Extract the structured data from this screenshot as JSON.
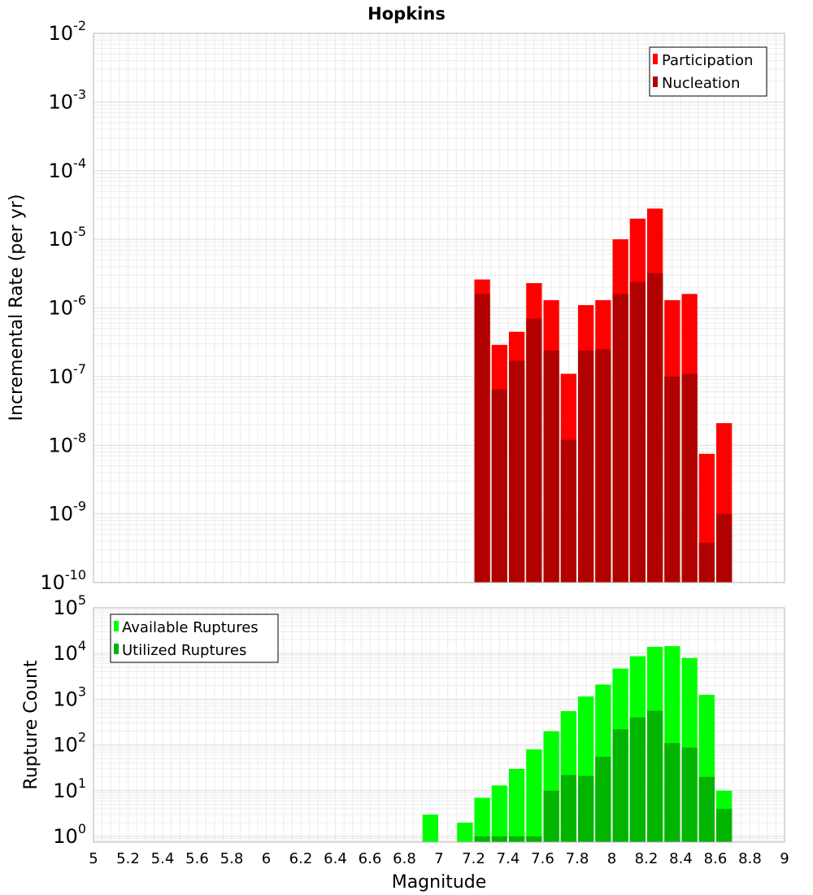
{
  "chart_data": [
    {
      "type": "bar",
      "title": "Hopkins",
      "xlabel": "",
      "ylabel": "Incremental Rate (per yr)",
      "yscale": "log",
      "ylim": [
        1e-10,
        0.01
      ],
      "xlim": [
        5,
        9
      ],
      "bin_width": 0.1,
      "legend_position": "top-right",
      "x": [
        7.25,
        7.35,
        7.45,
        7.55,
        7.65,
        7.75,
        7.85,
        7.95,
        8.05,
        8.15,
        8.25,
        8.35,
        8.45,
        8.55,
        8.65
      ],
      "series": [
        {
          "name": "Participation",
          "color": "#ff0000",
          "values": [
            2.6e-06,
            2.9e-07,
            4.5e-07,
            2.3e-06,
            1.3e-06,
            1.1e-07,
            1.1e-06,
            1.3e-06,
            1e-05,
            2e-05,
            2.8e-05,
            1.3e-06,
            1.6e-06,
            7.5e-09,
            2.1e-08
          ]
        },
        {
          "name": "Nucleation",
          "color": "#b00000",
          "values": [
            1.6e-06,
            6.5e-08,
            1.7e-07,
            7e-07,
            2.4e-07,
            1.2e-08,
            2.4e-07,
            2.5e-07,
            1.6e-06,
            2.4e-06,
            3.2e-06,
            1e-07,
            1.1e-07,
            3.8e-10,
            1e-09
          ]
        }
      ],
      "y_tick_labels": [
        {
          "base": "10",
          "exp": "-10"
        },
        {
          "base": "10",
          "exp": "-9"
        },
        {
          "base": "10",
          "exp": "-8"
        },
        {
          "base": "10",
          "exp": "-7"
        },
        {
          "base": "10",
          "exp": "-6"
        },
        {
          "base": "10",
          "exp": "-5"
        },
        {
          "base": "10",
          "exp": "-4"
        },
        {
          "base": "10",
          "exp": "-3"
        },
        {
          "base": "10",
          "exp": "-2"
        }
      ]
    },
    {
      "type": "bar",
      "title": "",
      "xlabel": "Magnitude",
      "ylabel": "Rupture Count",
      "yscale": "log",
      "ylim": [
        0.75,
        100000
      ],
      "xlim": [
        5,
        9
      ],
      "bin_width": 0.1,
      "legend_position": "top-left",
      "x": [
        6.95,
        7.15,
        7.25,
        7.35,
        7.45,
        7.55,
        7.65,
        7.75,
        7.85,
        7.95,
        8.05,
        8.15,
        8.25,
        8.35,
        8.45,
        8.55,
        8.65
      ],
      "series": [
        {
          "name": "Available Ruptures",
          "color": "#00ff00",
          "values": [
            3,
            2,
            7,
            13,
            30,
            80,
            200,
            550,
            1150,
            2100,
            4700,
            8700,
            14000,
            14500,
            8000,
            1250,
            10
          ]
        },
        {
          "name": "Utilized Ruptures",
          "color": "#00b400",
          "values": [
            0,
            0,
            1,
            1,
            1,
            1,
            10,
            22,
            21,
            55,
            220,
            400,
            560,
            110,
            88,
            20,
            4
          ]
        }
      ],
      "y_tick_labels": [
        {
          "base": "10",
          "exp": "0"
        },
        {
          "base": "10",
          "exp": "1"
        },
        {
          "base": "10",
          "exp": "2"
        },
        {
          "base": "10",
          "exp": "3"
        },
        {
          "base": "10",
          "exp": "4"
        },
        {
          "base": "10",
          "exp": "5"
        }
      ],
      "x_tick_labels": [
        "5",
        "5.2",
        "5.4",
        "5.6",
        "5.8",
        "6",
        "6.2",
        "6.4",
        "6.6",
        "6.8",
        "7",
        "7.2",
        "7.4",
        "7.6",
        "7.8",
        "8",
        "8.2",
        "8.4",
        "8.6",
        "8.8",
        "9"
      ]
    }
  ]
}
